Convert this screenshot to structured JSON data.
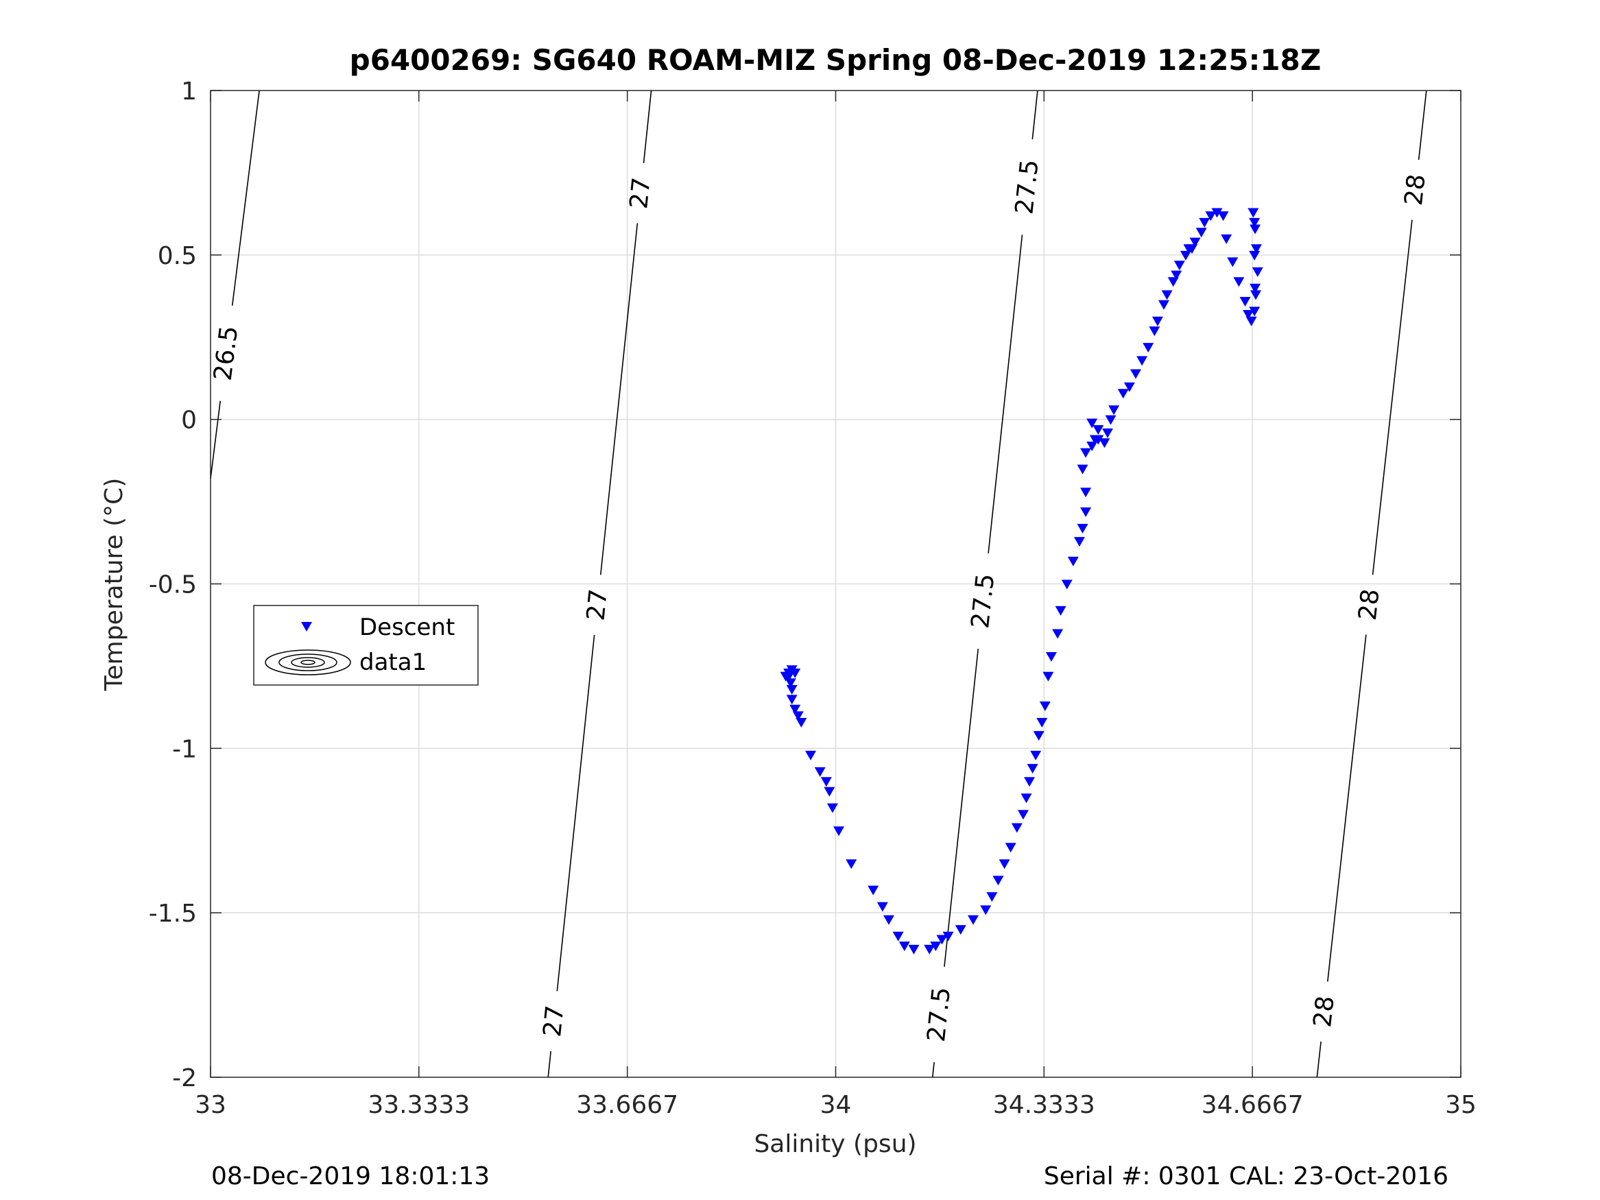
{
  "title": "p6400269: SG640 ROAM-MIZ Spring 08-Dec-2019 12:25:18Z",
  "footer": {
    "left": "08-Dec-2019 18:01:13",
    "right": "Serial #: 0301  CAL: 23-Oct-2016"
  },
  "colors": {
    "descent": "#0000ff",
    "contour": "#000000",
    "grid": "#dcdcdc",
    "axis": "#262626"
  },
  "chart_data": {
    "type": "scatter",
    "title": "p6400269: SG640 ROAM-MIZ Spring 08-Dec-2019 12:25:18Z",
    "xlabel": "Salinity (psu)",
    "ylabel": "Temperature (°C)",
    "xlim": [
      33,
      35
    ],
    "ylim": [
      -2,
      1
    ],
    "xticks": [
      33,
      33.3333,
      33.6667,
      34,
      34.3333,
      34.6667,
      35
    ],
    "xtick_labels": [
      "33",
      "33.3333",
      "33.6667",
      "34",
      "34.3333",
      "34.6667",
      "35"
    ],
    "yticks": [
      -2,
      -1.5,
      -1,
      -0.5,
      0,
      0.5,
      1
    ],
    "ytick_labels": [
      "-2",
      "-1.5",
      "-1",
      "-0.5",
      "0",
      "0.5",
      "1"
    ],
    "grid": true,
    "legend": {
      "position": "left-middle",
      "entries": [
        "Descent",
        "data1"
      ]
    },
    "series": [
      {
        "name": "Descent",
        "marker": "triangle-down",
        "color": "#0000ff",
        "x": [
          33.92,
          33.925,
          33.928,
          33.93,
          33.935,
          33.93,
          33.925,
          33.93,
          33.935,
          33.94,
          33.945,
          33.96,
          33.975,
          33.985,
          33.99,
          33.995,
          34.005,
          34.025,
          34.06,
          34.075,
          34.085,
          34.1,
          34.11,
          34.125,
          34.15,
          34.16,
          34.17,
          34.18,
          34.2,
          34.22,
          34.24,
          34.25,
          34.26,
          34.27,
          34.28,
          34.29,
          34.3,
          34.305,
          34.31,
          34.315,
          34.32,
          34.325,
          34.33,
          34.335,
          34.34,
          34.345,
          34.355,
          34.36,
          34.37,
          34.38,
          34.39,
          34.395,
          34.4,
          34.4,
          34.395,
          34.4,
          34.41,
          34.415,
          34.42,
          34.41,
          34.42,
          34.43,
          34.435,
          34.44,
          34.445,
          34.46,
          34.47,
          34.48,
          34.49,
          34.5,
          34.51,
          34.515,
          34.525,
          34.53,
          34.54,
          34.545,
          34.55,
          34.56,
          34.565,
          34.57,
          34.575,
          34.585,
          34.59,
          34.6,
          34.61,
          34.62,
          34.625,
          34.635,
          34.645,
          34.655,
          34.66,
          34.665,
          34.67,
          34.672,
          34.675,
          34.673,
          34.671,
          34.67,
          34.668,
          34.67,
          34.671
        ],
        "y": [
          -0.78,
          -0.78,
          -0.8,
          -0.85,
          -0.88,
          -0.82,
          -0.77,
          -0.76,
          -0.77,
          -0.9,
          -0.92,
          -1.02,
          -1.07,
          -1.1,
          -1.13,
          -1.18,
          -1.25,
          -1.35,
          -1.43,
          -1.48,
          -1.52,
          -1.57,
          -1.6,
          -1.61,
          -1.61,
          -1.6,
          -1.58,
          -1.57,
          -1.55,
          -1.52,
          -1.49,
          -1.45,
          -1.4,
          -1.35,
          -1.3,
          -1.24,
          -1.2,
          -1.15,
          -1.1,
          -1.06,
          -1.02,
          -0.96,
          -0.92,
          -0.87,
          -0.78,
          -0.72,
          -0.65,
          -0.58,
          -0.5,
          -0.43,
          -0.37,
          -0.33,
          -0.28,
          -0.22,
          -0.15,
          -0.1,
          -0.08,
          -0.06,
          -0.03,
          -0.01,
          -0.06,
          -0.07,
          -0.04,
          0,
          0.03,
          0.08,
          0.1,
          0.14,
          0.18,
          0.22,
          0.27,
          0.3,
          0.35,
          0.38,
          0.42,
          0.44,
          0.47,
          0.5,
          0.52,
          0.52,
          0.54,
          0.57,
          0.6,
          0.62,
          0.63,
          0.62,
          0.55,
          0.48,
          0.42,
          0.36,
          0.32,
          0.3,
          0.33,
          0.38,
          0.45,
          0.52,
          0.58,
          0.6,
          0.63,
          0.5,
          0.4
        ]
      }
    ],
    "contours": [
      {
        "level": "26.5",
        "x_bottom": 33.0,
        "y_bottom": -0.18,
        "x_top": 33.078,
        "y_top": 1.0,
        "label_positions": [
          [
            33.03,
            0.2
          ]
        ]
      },
      {
        "level": "27",
        "x_bottom": 33.54,
        "y_bottom": -2.0,
        "x_top": 33.705,
        "y_top": 1.0,
        "label_positions": [
          [
            33.552,
            -1.83
          ],
          [
            33.6,
            -0.56
          ],
          [
            33.678,
            0.69
          ]
        ]
      },
      {
        "level": "27.5",
        "x_bottom": 34.155,
        "y_bottom": -2.0,
        "x_top": 34.323,
        "y_top": 1.0,
        "label_positions": [
          [
            34.17,
            -1.81
          ],
          [
            34.225,
            -0.55
          ],
          [
            34.29,
            0.71
          ]
        ]
      },
      {
        "level": "28",
        "x_bottom": 34.77,
        "y_bottom": -2.0,
        "x_top": 34.945,
        "y_top": 1.0,
        "label_positions": [
          [
            34.78,
            -1.8
          ],
          [
            34.838,
            -0.56
          ],
          [
            34.918,
            0.7
          ]
        ]
      }
    ]
  }
}
